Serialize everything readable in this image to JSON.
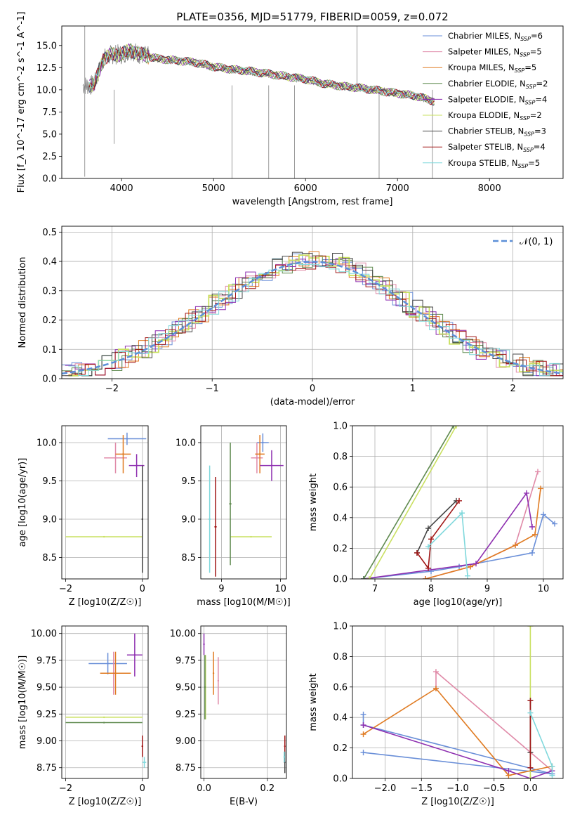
{
  "figure_title": "PLATE=0356, MJD=51779, FIBERID=0059, z=0.072",
  "colors": {
    "Chabrier MILES": "#6a8fd8",
    "Salpeter MILES": "#e08aa8",
    "Kroupa MILES": "#e07b22",
    "Chabrier ELODIE": "#5f8a4f",
    "Salpeter ELODIE": "#8e2fb0",
    "Kroupa ELODIE": "#c9e060",
    "Chabrier STELIB": "#444444",
    "Salpeter STELIB": "#a01616",
    "Kroupa STELIB": "#7fd8dc",
    "data": "#808080",
    "gaussian": "#5b8fd8",
    "grid": "#b0b0b0"
  },
  "chart_data": [
    {
      "id": "spectrum",
      "type": "line",
      "title": "PLATE=0356, MJD=51779, FIBERID=0059, z=0.072",
      "xlabel": "wavelength [Angstrom, rest frame]",
      "ylabel": "Flux [f_λ 10^-17 erg cm^-2 s^-1 A^-1]",
      "xlim": [
        3350,
        8800
      ],
      "ylim": [
        0,
        17.2
      ],
      "xticks": [
        4000,
        5000,
        6000,
        7000,
        8000
      ],
      "yticks": [
        0.0,
        2.5,
        5.0,
        7.5,
        10.0,
        12.5,
        15.0
      ],
      "legend_position": "top-right",
      "legend": [
        "Chabrier MILES, N_SSP=6",
        "Salpeter MILES, N_SSP=5",
        "Kroupa MILES, N_SSP=5",
        "Chabrier ELODIE, N_SSP=2",
        "Salpeter ELODIE, N_SSP=4",
        "Kroupa ELODIE, N_SSP=2",
        "Chabrier STELIB, N_SSP=3",
        "Salpeter STELIB, N_SSP=4",
        "Kroupa STELIB, N_SSP=5"
      ],
      "continuum": {
        "x": [
          3580,
          3700,
          3800,
          3900,
          4000,
          4100,
          4200,
          4400,
          4600,
          4800,
          5000,
          5200,
          5400,
          5600,
          5800,
          6000,
          6200,
          6400,
          6600,
          6800,
          7000,
          7200,
          7400
        ],
        "y": [
          10.5,
          10.5,
          13.5,
          14.0,
          14.0,
          14.5,
          14.0,
          13.5,
          13.3,
          13.1,
          12.6,
          12.3,
          12.1,
          11.8,
          11.5,
          11.2,
          10.7,
          10.4,
          10.2,
          9.9,
          9.6,
          9.3,
          8.7
        ]
      },
      "data_spikes": [
        {
          "x": 3600,
          "y0": 0.2,
          "y1": 17.2
        },
        {
          "x": 3920,
          "y0": 3.9,
          "y1": 10.0
        },
        {
          "x": 5200,
          "y0": 0.0,
          "y1": 10.5
        },
        {
          "x": 5600,
          "y0": 0.0,
          "y1": 10.5
        },
        {
          "x": 5880,
          "y0": 0.0,
          "y1": 10.5
        },
        {
          "x": 6560,
          "y0": 10.0,
          "y1": 17.2
        },
        {
          "x": 6800,
          "y0": 0.0,
          "y1": 10.0
        },
        {
          "x": 7380,
          "y0": 0.0,
          "y1": 10.0
        }
      ]
    },
    {
      "id": "residuals",
      "type": "line",
      "xlabel": "(data-model)/error",
      "ylabel": "Normed distribution",
      "xlim": [
        -2.5,
        2.5
      ],
      "ylim": [
        0,
        0.52
      ],
      "xticks": [
        -2,
        -1,
        0,
        1,
        2
      ],
      "yticks": [
        0.0,
        0.1,
        0.2,
        0.3,
        0.4,
        0.5
      ],
      "legend_position": "top-right",
      "legend": [
        "N(0,1)"
      ],
      "legend_display": "𝒩(0, 1)"
    },
    {
      "id": "z-age",
      "type": "scatter",
      "xlabel": "Z [log10(Z/Z☉)]",
      "ylabel": "age [log10(age/yr)]",
      "xlim": [
        -2.1,
        0.15
      ],
      "ylim": [
        8.22,
        10.22
      ],
      "xticks": [
        -2,
        0
      ],
      "yticks": [
        8.5,
        9.0,
        9.5,
        10.0
      ],
      "series": [
        {
          "name": "Chabrier MILES",
          "x": -0.4,
          "y": 10.05,
          "dx": 0.5,
          "dy": 0.08
        },
        {
          "name": "Salpeter MILES",
          "x": -0.7,
          "y": 9.8,
          "dx": 0.3,
          "dy": 0.2
        },
        {
          "name": "Kroupa MILES",
          "x": -0.5,
          "y": 9.85,
          "dx": 0.2,
          "dy": 0.25
        },
        {
          "name": "Salpeter ELODIE",
          "x": -0.15,
          "y": 9.7,
          "dx": 0.2,
          "dy": 0.15
        },
        {
          "name": "Kroupa ELODIE",
          "x": -1.0,
          "y": 8.77,
          "dx": 1.0,
          "dy": 0.0
        },
        {
          "name": "Chabrier STELIB",
          "x": 0.0,
          "y": 9.0,
          "dx": 0.02,
          "dy": 0.7
        }
      ]
    },
    {
      "id": "mass-age",
      "type": "scatter",
      "xlabel": "mass [log10(M/M☉)]",
      "ylabel": "",
      "xlim": [
        8.65,
        10.1
      ],
      "ylim": [
        8.22,
        10.22
      ],
      "xticks": [
        9,
        10
      ],
      "yticks": [
        8.5,
        9.0,
        9.5,
        10.0
      ],
      "series": [
        {
          "name": "Chabrier MILES",
          "x": 9.7,
          "y": 10.0,
          "dx": 0.1,
          "dy": 0.12
        },
        {
          "name": "Salpeter MILES",
          "x": 9.6,
          "y": 9.8,
          "dx": 0.1,
          "dy": 0.2
        },
        {
          "name": "Kroupa MILES",
          "x": 9.65,
          "y": 9.85,
          "dx": 0.08,
          "dy": 0.25
        },
        {
          "name": "Salpeter ELODIE",
          "x": 9.85,
          "y": 9.7,
          "dx": 0.2,
          "dy": 0.2
        },
        {
          "name": "Kroupa ELODIE",
          "x": 9.5,
          "y": 8.77,
          "dx": 0.35,
          "dy": 0.0
        },
        {
          "name": "Chabrier ELODIE",
          "x": 9.15,
          "y": 9.2,
          "dx": 0.02,
          "dy": 0.8
        },
        {
          "name": "Kroupa STELIB",
          "x": 8.8,
          "y": 9.0,
          "dx": 0.02,
          "dy": 0.7
        },
        {
          "name": "Salpeter STELIB",
          "x": 8.9,
          "y": 8.9,
          "dx": 0.02,
          "dy": 0.65
        }
      ]
    },
    {
      "id": "age-weight",
      "type": "line",
      "xlabel": "age [log10(age/yr)]",
      "ylabel": "mass weight",
      "xlim": [
        6.6,
        10.35
      ],
      "ylim": [
        0,
        1.0
      ],
      "xticks": [
        7,
        8,
        9,
        10
      ],
      "yticks": [
        0.0,
        0.2,
        0.4,
        0.6,
        0.8,
        1.0
      ],
      "series": [
        {
          "name": "Chabrier MILES",
          "x": [
            6.8,
            8.0,
            8.5,
            9.8,
            10.0,
            10.2
          ],
          "y": [
            0.0,
            0.05,
            0.08,
            0.17,
            0.42,
            0.36
          ]
        },
        {
          "name": "Salpeter MILES",
          "x": [
            7.9,
            8.7,
            9.5,
            9.9
          ],
          "y": [
            0.0,
            0.08,
            0.22,
            0.7
          ]
        },
        {
          "name": "Kroupa MILES",
          "x": [
            7.9,
            8.7,
            9.5,
            9.85,
            9.95
          ],
          "y": [
            0.0,
            0.08,
            0.22,
            0.29,
            0.59
          ]
        },
        {
          "name": "Salpeter ELODIE",
          "x": [
            6.8,
            8.8,
            9.7,
            9.8
          ],
          "y": [
            0.0,
            0.1,
            0.56,
            0.34
          ]
        },
        {
          "name": "Kroupa ELODIE",
          "x": [
            6.9,
            8.45
          ],
          "y": [
            0.0,
            1.0
          ]
        },
        {
          "name": "Chabrier ELODIE",
          "x": [
            6.8,
            8.4
          ],
          "y": [
            0.0,
            1.0
          ]
        },
        {
          "name": "Chabrier STELIB",
          "x": [
            7.75,
            7.95,
            8.45
          ],
          "y": [
            0.17,
            0.33,
            0.51
          ]
        },
        {
          "name": "Salpeter STELIB",
          "x": [
            7.75,
            7.95,
            8.0,
            8.5
          ],
          "y": [
            0.17,
            0.07,
            0.26,
            0.51
          ]
        },
        {
          "name": "Kroupa STELIB",
          "x": [
            7.95,
            8.55,
            8.65
          ],
          "y": [
            0.21,
            0.43,
            0.02
          ]
        }
      ]
    },
    {
      "id": "z-mass",
      "type": "scatter",
      "xlabel": "Z [log10(Z/Z☉)]",
      "ylabel": "mass [log10(M/M☉)]",
      "xlim": [
        -2.1,
        0.15
      ],
      "ylim": [
        8.65,
        10.07
      ],
      "xticks": [
        -2,
        0
      ],
      "yticks": [
        8.75,
        9.0,
        9.25,
        9.5,
        9.75,
        10.0
      ],
      "series": [
        {
          "name": "Chabrier MILES",
          "x": -0.9,
          "y": 9.72,
          "dx": 0.5,
          "dy": 0.1
        },
        {
          "name": "Salpeter MILES",
          "x": -0.75,
          "y": 9.63,
          "dx": 0.25,
          "dy": 0.2
        },
        {
          "name": "Kroupa MILES",
          "x": -0.7,
          "y": 9.63,
          "dx": 0.4,
          "dy": 0.2
        },
        {
          "name": "Salpeter ELODIE",
          "x": -0.2,
          "y": 9.8,
          "dx": 0.2,
          "dy": 0.2
        },
        {
          "name": "Kroupa ELODIE",
          "x": -1.0,
          "y": 9.22,
          "dx": 1.0,
          "dy": 0.0
        },
        {
          "name": "Chabrier ELODIE",
          "x": -1.0,
          "y": 9.17,
          "dx": 1.0,
          "dy": 0.0
        },
        {
          "name": "Salpeter STELIB",
          "x": 0.0,
          "y": 8.95,
          "dx": 0.02,
          "dy": 0.1
        },
        {
          "name": "Kroupa STELIB",
          "x": 0.05,
          "y": 8.8,
          "dx": 0.05,
          "dy": 0.05
        }
      ]
    },
    {
      "id": "ebv-mass",
      "type": "scatter",
      "xlabel": "E(B-V)",
      "ylabel": "",
      "xlim": [
        -0.01,
        0.26
      ],
      "ylim": [
        8.65,
        10.07
      ],
      "xticks": [
        0.0,
        0.2
      ],
      "yticks": [
        8.75,
        9.0,
        9.25,
        9.5,
        9.75,
        10.0
      ],
      "series": [
        {
          "name": "Salpeter ELODIE",
          "x": 0.0,
          "y": 9.9,
          "dy": 0.1
        },
        {
          "name": "Kroupa ELODIE",
          "x": 0.005,
          "y": 9.5,
          "dy": 0.3
        },
        {
          "name": "Chabrier ELODIE",
          "x": 0.003,
          "y": 9.5,
          "dy": 0.3
        },
        {
          "name": "Kroupa MILES",
          "x": 0.03,
          "y": 9.63,
          "dy": 0.2
        },
        {
          "name": "Salpeter MILES",
          "x": 0.045,
          "y": 9.56,
          "dy": 0.22
        },
        {
          "name": "Salpeter STELIB",
          "x": 0.255,
          "y": 8.95,
          "dy": 0.1
        },
        {
          "name": "Chabrier STELIB",
          "x": 0.255,
          "y": 8.8,
          "dy": 0.1
        },
        {
          "name": "Kroupa STELIB",
          "x": 0.253,
          "y": 8.85,
          "dy": 0.05
        }
      ]
    },
    {
      "id": "z-weight",
      "type": "line",
      "xlabel": "Z [log10(Z/Z☉)]",
      "ylabel": "mass weight",
      "xlim": [
        -2.45,
        0.45
      ],
      "ylim": [
        0,
        1.0
      ],
      "xticks": [
        -2.0,
        -1.5,
        -1.0,
        -0.5,
        0.0
      ],
      "yticks": [
        0.0,
        0.2,
        0.4,
        0.6,
        0.8,
        1.0
      ],
      "series": [
        {
          "name": "Chabrier MILES",
          "x": [
            -2.3,
            0.3,
            -2.3,
            -2.3
          ],
          "y": [
            0.17,
            0.03,
            0.35,
            0.42
          ]
        },
        {
          "name": "Salpeter MILES",
          "x": [
            -1.3,
            -1.3,
            0.3
          ],
          "y": [
            0.59,
            0.7,
            0.05
          ]
        },
        {
          "name": "Kroupa MILES",
          "x": [
            -2.3,
            -1.3,
            -0.3,
            0.3
          ],
          "y": [
            0.29,
            0.59,
            0.02,
            0.08
          ]
        },
        {
          "name": "Salpeter ELODIE",
          "x": [
            -2.3,
            -0.3,
            0.0,
            0.3
          ],
          "y": [
            0.35,
            0.05,
            0.0,
            0.05
          ]
        },
        {
          "name": "Kroupa ELODIE",
          "x": [
            0.0,
            0.0
          ],
          "y": [
            0.0,
            1.0
          ]
        },
        {
          "name": "Chabrier STELIB",
          "x": [
            0.0,
            0.0
          ],
          "y": [
            0.17,
            0.51
          ]
        },
        {
          "name": "Salpeter STELIB",
          "x": [
            0.0,
            0.0
          ],
          "y": [
            0.07,
            0.51
          ]
        },
        {
          "name": "Kroupa STELIB",
          "x": [
            0.0,
            0.3,
            0.3
          ],
          "y": [
            0.43,
            0.08,
            0.02
          ]
        }
      ]
    }
  ]
}
